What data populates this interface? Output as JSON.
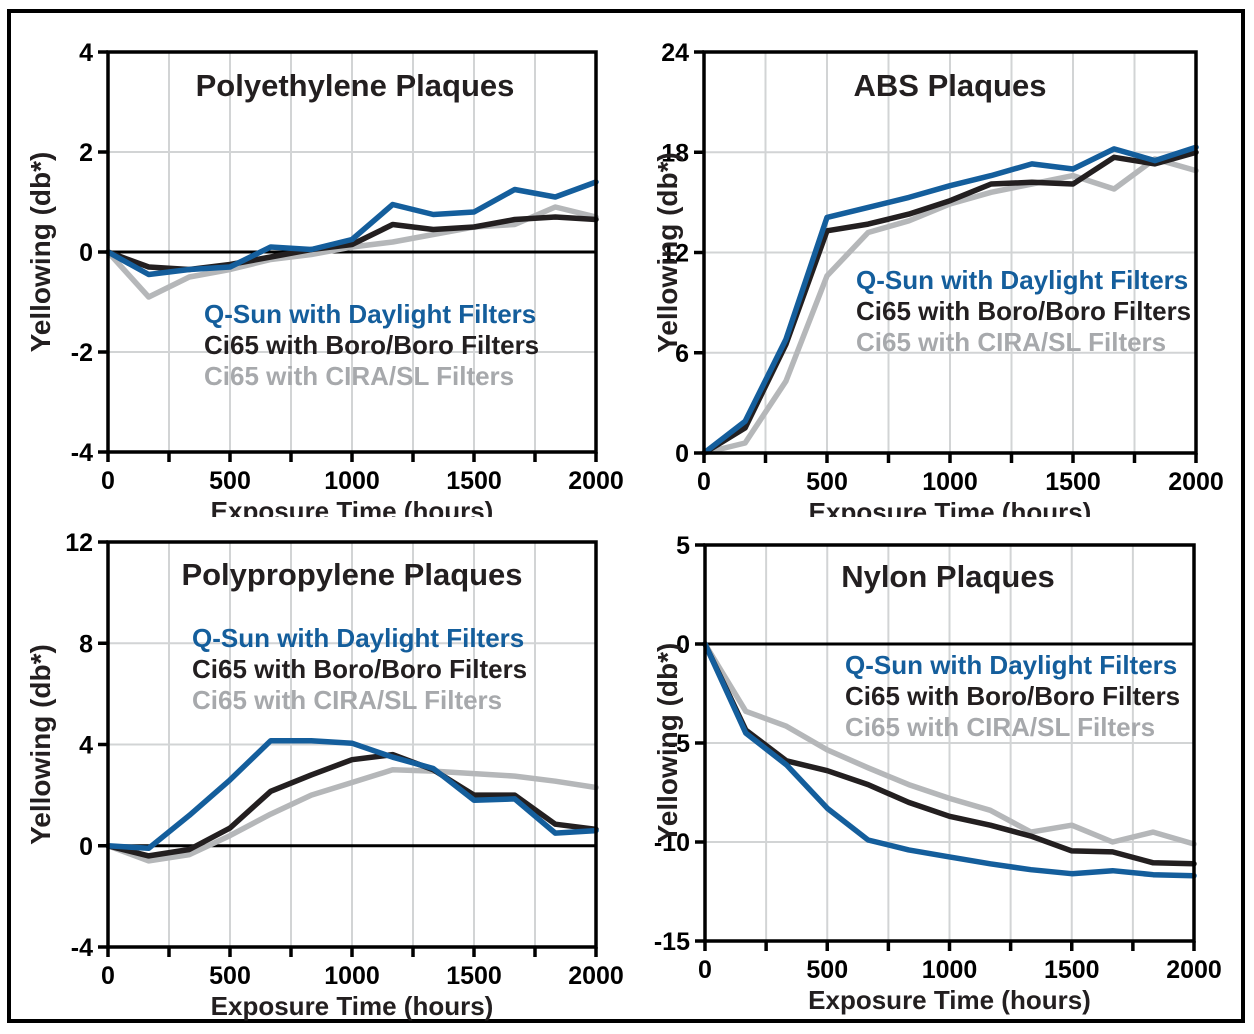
{
  "figure": {
    "background": "#ffffff",
    "border_color": "#000000"
  },
  "colors": {
    "line_blue": "#145e9c",
    "line_black": "#231f20",
    "line_gray": "#b5b7b9",
    "legend_gray_text": "#a7a9ac",
    "grid": "#d2d4d5",
    "axis": "#000000",
    "text": "#231f20"
  },
  "legend_labels": [
    "Q-Sun with Daylight Filters",
    "Ci65 with Boro/Boro Filters",
    "Ci65 with CIRA/SL Filters"
  ],
  "chart_data": [
    {
      "type": "line",
      "title": "Polyethylene Plaques",
      "xlabel": "Exposure Time (hours)",
      "ylabel": "Yellowing (db*)",
      "xlim": [
        0,
        2000
      ],
      "ylim": [
        -4,
        4
      ],
      "xticks": [
        0,
        500,
        1000,
        1500,
        2000
      ],
      "yticks": [
        4,
        2,
        0,
        -2,
        -4
      ],
      "x_grid_interval": 250,
      "grid_y": [
        -2,
        2
      ],
      "zero_line": true,
      "x": [
        0,
        167,
        333,
        500,
        667,
        833,
        1000,
        1167,
        1333,
        1500,
        1667,
        1833,
        2000
      ],
      "series": [
        {
          "name": "Q-Sun with Daylight Filters",
          "color": "blue",
          "values": [
            0,
            -0.45,
            -0.35,
            -0.3,
            0.1,
            0.05,
            0.25,
            0.95,
            0.75,
            0.8,
            1.25,
            1.1,
            1.4
          ]
        },
        {
          "name": "Ci65 with Boro/Boro Filters",
          "color": "black",
          "values": [
            0,
            -0.3,
            -0.35,
            -0.25,
            -0.1,
            0.05,
            0.15,
            0.55,
            0.45,
            0.5,
            0.65,
            0.7,
            0.65
          ]
        },
        {
          "name": "Ci65 with CIRA/SL Filters",
          "color": "gray",
          "values": [
            0,
            -0.9,
            -0.5,
            -0.35,
            -0.15,
            -0.05,
            0.1,
            0.2,
            0.35,
            0.5,
            0.55,
            0.9,
            0.7
          ]
        }
      ]
    },
    {
      "type": "line",
      "title": "ABS Plaques",
      "xlabel": "Exposure Time (hours)",
      "ylabel": "Yellowing (db*)",
      "xlim": [
        0,
        2000
      ],
      "ylim": [
        0,
        24
      ],
      "xticks": [
        0,
        500,
        1000,
        1500,
        2000
      ],
      "yticks": [
        24,
        18,
        12,
        6,
        0
      ],
      "x_grid_interval": 250,
      "grid_y": [
        6,
        12,
        18
      ],
      "zero_line": false,
      "x": [
        0,
        167,
        333,
        500,
        667,
        833,
        1000,
        1167,
        1333,
        1500,
        1667,
        1833,
        2000
      ],
      "series": [
        {
          "name": "Q-Sun with Daylight Filters",
          "color": "blue",
          "values": [
            0,
            1.9,
            6.8,
            14.1,
            14.7,
            15.3,
            16.0,
            16.6,
            17.3,
            17.0,
            18.2,
            17.5,
            18.3
          ]
        },
        {
          "name": "Ci65 with Boro/Boro Filters",
          "color": "black",
          "values": [
            0,
            1.5,
            6.5,
            13.3,
            13.7,
            14.3,
            15.1,
            16.1,
            16.2,
            16.1,
            17.7,
            17.3,
            18.0
          ]
        },
        {
          "name": "Ci65 with CIRA/SL Filters",
          "color": "gray",
          "values": [
            0,
            0.6,
            4.3,
            10.6,
            13.2,
            13.9,
            14.9,
            15.6,
            16.1,
            16.6,
            15.8,
            17.6,
            16.9
          ]
        }
      ]
    },
    {
      "type": "line",
      "title": "Polypropylene Plaques",
      "xlabel": "Exposure Time (hours)",
      "ylabel": "Yellowing (db*)",
      "xlim": [
        0,
        2000
      ],
      "ylim": [
        -4,
        12
      ],
      "xticks": [
        0,
        500,
        1000,
        1500,
        2000
      ],
      "yticks": [
        12,
        8,
        4,
        0,
        -4
      ],
      "x_grid_interval": 250,
      "grid_y": [
        4,
        8
      ],
      "zero_line": true,
      "x": [
        0,
        167,
        333,
        500,
        667,
        833,
        1000,
        1167,
        1333,
        1500,
        1667,
        1833,
        2000
      ],
      "series": [
        {
          "name": "Q-Sun with Daylight Filters",
          "color": "blue",
          "values": [
            0,
            -0.1,
            1.2,
            2.6,
            4.15,
            4.15,
            4.05,
            3.5,
            3.05,
            1.8,
            1.85,
            0.5,
            0.6
          ]
        },
        {
          "name": "Ci65 with Boro/Boro Filters",
          "color": "black",
          "values": [
            0,
            -0.4,
            -0.15,
            0.7,
            2.15,
            2.8,
            3.4,
            3.6,
            3.0,
            2.0,
            2.0,
            0.85,
            0.65
          ]
        },
        {
          "name": "Ci65 with CIRA/SL Filters",
          "color": "gray",
          "values": [
            0,
            -0.6,
            -0.35,
            0.4,
            1.25,
            2.0,
            2.5,
            3.0,
            2.95,
            2.85,
            2.75,
            2.55,
            2.3
          ]
        }
      ]
    },
    {
      "type": "line",
      "title": "Nylon Plaques",
      "xlabel": "Exposure Time (hours)",
      "ylabel": "Yellowing (db*)",
      "xlim": [
        0,
        2000
      ],
      "ylim": [
        -15,
        5
      ],
      "xticks": [
        0,
        500,
        1000,
        1500,
        2000
      ],
      "yticks": [
        5,
        0,
        -5,
        -10,
        -15
      ],
      "x_grid_interval": 250,
      "grid_y": [
        -10,
        -5
      ],
      "zero_line": true,
      "x": [
        0,
        167,
        333,
        500,
        667,
        833,
        1000,
        1167,
        1333,
        1500,
        1667,
        1833,
        2000
      ],
      "series": [
        {
          "name": "Q-Sun with Daylight Filters",
          "color": "blue",
          "values": [
            0,
            -4.5,
            -6.1,
            -8.3,
            -9.9,
            -10.4,
            -10.75,
            -11.1,
            -11.4,
            -11.6,
            -11.45,
            -11.65,
            -11.7
          ]
        },
        {
          "name": "Ci65 with Boro/Boro Filters",
          "color": "black",
          "values": [
            0,
            -4.35,
            -5.9,
            -6.4,
            -7.1,
            -8.0,
            -8.7,
            -9.15,
            -9.7,
            -10.45,
            -10.5,
            -11.05,
            -11.1
          ]
        },
        {
          "name": "Ci65 with CIRA/SL Filters",
          "color": "gray",
          "values": [
            0,
            -3.4,
            -4.15,
            -5.35,
            -6.25,
            -7.1,
            -7.8,
            -8.4,
            -9.5,
            -9.15,
            -10.0,
            -9.5,
            -10.1
          ]
        }
      ]
    }
  ]
}
